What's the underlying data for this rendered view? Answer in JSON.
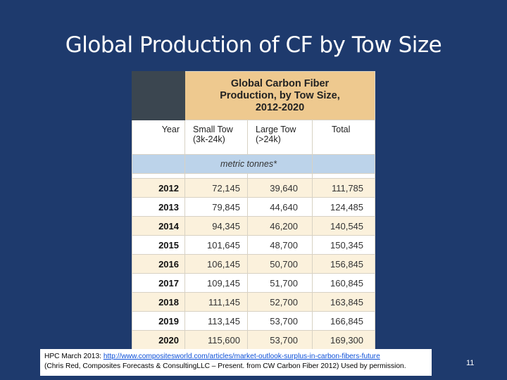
{
  "slide": {
    "title": "Global Production of CF by Tow Size",
    "page_number": "11"
  },
  "table": {
    "title_lines": [
      "Global Carbon Fiber",
      "Production, by Tow Size,",
      "2012-2020"
    ],
    "headers": {
      "year": "Year",
      "small_tow": [
        "Small Tow",
        "(3k-24k)"
      ],
      "large_tow": [
        "Large Tow",
        "(>24k)"
      ],
      "total": "Total"
    },
    "unit": "metric tonnes*",
    "rows": [
      {
        "year": "2012",
        "small": "72,145",
        "large": "39,640",
        "total": "111,785"
      },
      {
        "year": "2013",
        "small": "79,845",
        "large": "44,640",
        "total": "124,485"
      },
      {
        "year": "2014",
        "small": "94,345",
        "large": "46,200",
        "total": "140,545"
      },
      {
        "year": "2015",
        "small": "101,645",
        "large": "48,700",
        "total": "150,345"
      },
      {
        "year": "2016",
        "small": "106,145",
        "large": "50,700",
        "total": "156,845"
      },
      {
        "year": "2017",
        "small": "109,145",
        "large": "51,700",
        "total": "160,845"
      },
      {
        "year": "2018",
        "small": "111,145",
        "large": "52,700",
        "total": "163,845"
      },
      {
        "year": "2019",
        "small": "113,145",
        "large": "53,700",
        "total": "166,845"
      },
      {
        "year": "2020",
        "small": "115,600",
        "large": "53,700",
        "total": "169,300"
      }
    ]
  },
  "citation": {
    "prefix": "HPC March 2013: ",
    "link_text": "http://www.compositesworld.com/articles/market-outlook-surplus-in-carbon-fibers-future",
    "line2": "(Chris Red, Composites Forecasts & ConsultingLLC – Present. from CW Carbon Fiber 2012) Used by permission."
  },
  "colors": {
    "slide_background": "#1e3a6d",
    "table_title_fill": "#eec98f",
    "unit_row_fill": "#bcd3ea",
    "odd_row_fill": "#fbf1dc",
    "corner_fill": "#3b4650"
  }
}
